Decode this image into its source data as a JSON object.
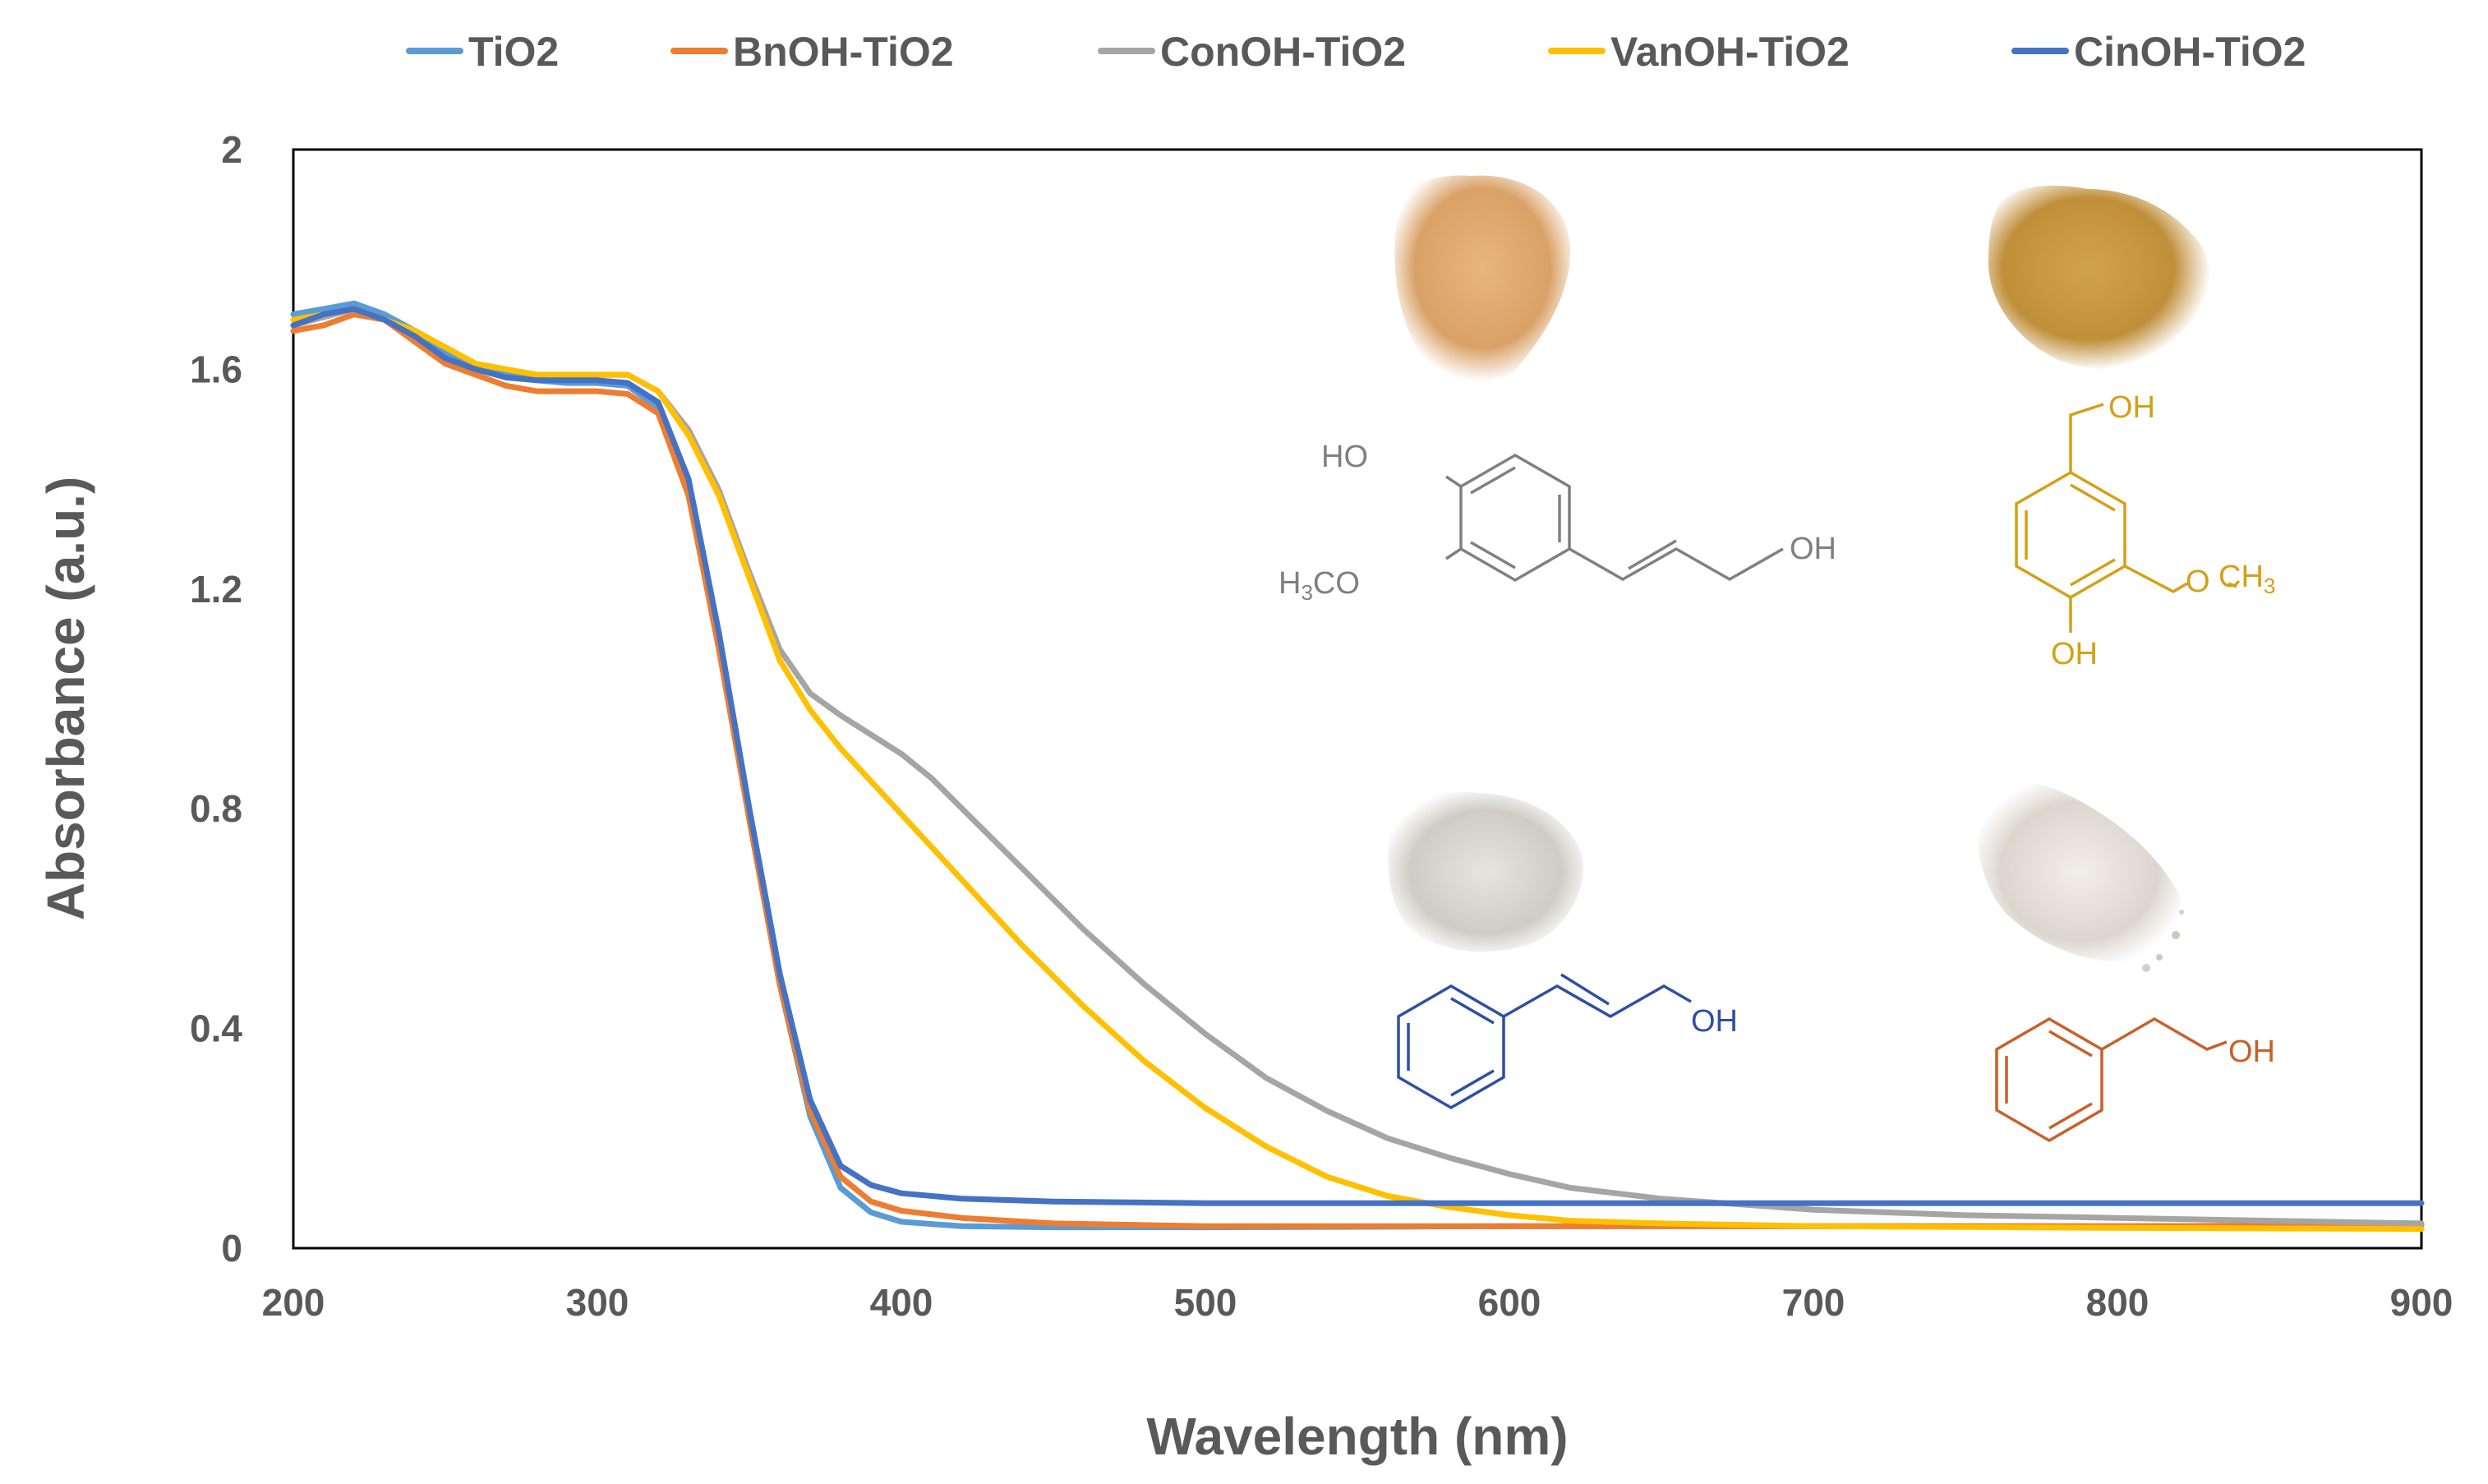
{
  "chart_data": {
    "type": "line",
    "title": "",
    "xlabel": "Wavelength (nm)",
    "ylabel": "Absorbance (a.u.)",
    "xlim": [
      200,
      900
    ],
    "ylim": [
      0,
      2
    ],
    "xticks": [
      200,
      300,
      400,
      500,
      600,
      700,
      800,
      900
    ],
    "yticks": [
      0,
      0.4,
      0.8,
      1.2,
      1.6,
      2
    ],
    "ytick_labels": [
      "0",
      "0.4",
      "0.8",
      "1.2",
      "1.6",
      "2"
    ],
    "grid": false,
    "legend_position": "top",
    "series": [
      {
        "name": "TiO2",
        "color": "#5b9bd5",
        "x": [
          200,
          210,
          220,
          230,
          240,
          250,
          260,
          270,
          280,
          290,
          300,
          310,
          320,
          330,
          340,
          350,
          360,
          370,
          380,
          390,
          400,
          420,
          450,
          500,
          600,
          700,
          800,
          900
        ],
        "y": [
          1.7,
          1.71,
          1.72,
          1.7,
          1.67,
          1.63,
          1.61,
          1.59,
          1.58,
          1.575,
          1.575,
          1.57,
          1.53,
          1.38,
          1.1,
          0.78,
          0.48,
          0.24,
          0.11,
          0.065,
          0.048,
          0.04,
          0.038,
          0.038,
          0.04,
          0.04,
          0.04,
          0.042
        ]
      },
      {
        "name": "BnOH-TiO2",
        "color": "#ed7d31",
        "x": [
          200,
          210,
          220,
          230,
          240,
          250,
          260,
          270,
          280,
          290,
          300,
          310,
          320,
          330,
          340,
          350,
          360,
          370,
          380,
          390,
          400,
          420,
          450,
          500,
          600,
          700,
          800,
          900
        ],
        "y": [
          1.67,
          1.68,
          1.7,
          1.69,
          1.65,
          1.61,
          1.59,
          1.57,
          1.56,
          1.56,
          1.56,
          1.555,
          1.52,
          1.37,
          1.09,
          0.78,
          0.48,
          0.25,
          0.13,
          0.085,
          0.068,
          0.055,
          0.045,
          0.04,
          0.04,
          0.04,
          0.04,
          0.042
        ]
      },
      {
        "name": "ConOH-TiO2",
        "color": "#a5a5a5",
        "x": [
          200,
          220,
          240,
          260,
          280,
          300,
          310,
          320,
          330,
          340,
          350,
          360,
          370,
          380,
          390,
          400,
          410,
          420,
          440,
          460,
          480,
          500,
          520,
          540,
          560,
          580,
          600,
          620,
          650,
          700,
          750,
          800,
          850,
          900
        ],
        "y": [
          1.68,
          1.71,
          1.67,
          1.61,
          1.59,
          1.59,
          1.59,
          1.56,
          1.49,
          1.38,
          1.23,
          1.09,
          1.01,
          0.97,
          0.935,
          0.9,
          0.855,
          0.8,
          0.69,
          0.58,
          0.48,
          0.39,
          0.31,
          0.25,
          0.2,
          0.165,
          0.135,
          0.11,
          0.09,
          0.07,
          0.06,
          0.055,
          0.05,
          0.045
        ]
      },
      {
        "name": "VanOH-TiO2",
        "color": "#ffc000",
        "x": [
          200,
          220,
          240,
          260,
          280,
          300,
          310,
          320,
          330,
          340,
          350,
          360,
          370,
          380,
          390,
          400,
          410,
          420,
          440,
          460,
          480,
          500,
          520,
          540,
          560,
          580,
          600,
          620,
          650,
          700,
          800,
          900
        ],
        "y": [
          1.69,
          1.71,
          1.67,
          1.61,
          1.59,
          1.59,
          1.59,
          1.56,
          1.48,
          1.37,
          1.22,
          1.07,
          0.98,
          0.91,
          0.85,
          0.79,
          0.73,
          0.67,
          0.55,
          0.44,
          0.34,
          0.255,
          0.185,
          0.13,
          0.095,
          0.075,
          0.06,
          0.05,
          0.045,
          0.04,
          0.037,
          0.035
        ]
      },
      {
        "name": "CinOH-TiO2",
        "color": "#4472c4",
        "x": [
          200,
          210,
          220,
          230,
          240,
          250,
          260,
          270,
          280,
          290,
          300,
          310,
          320,
          330,
          340,
          350,
          360,
          370,
          380,
          390,
          400,
          420,
          450,
          500,
          600,
          700,
          800,
          900
        ],
        "y": [
          1.68,
          1.7,
          1.71,
          1.69,
          1.66,
          1.62,
          1.6,
          1.585,
          1.58,
          1.58,
          1.58,
          1.575,
          1.54,
          1.4,
          1.12,
          0.8,
          0.5,
          0.27,
          0.15,
          0.115,
          0.1,
          0.09,
          0.085,
          0.082,
          0.082,
          0.082,
          0.082,
          0.082
        ]
      }
    ],
    "annotations": [
      {
        "name": "coniferyl-alcohol",
        "color": "#808080",
        "labels": [
          "HO",
          "H3CO",
          "OH"
        ]
      },
      {
        "name": "vanillyl-alcohol",
        "color": "#d4a017",
        "labels": [
          "OH",
          "O",
          "CH3",
          "OH"
        ]
      },
      {
        "name": "cinnamyl-alcohol",
        "color": "#2e4fa3",
        "labels": [
          "OH"
        ]
      },
      {
        "name": "benzyl-alcohol",
        "color": "#c8602a",
        "labels": [
          "OH"
        ]
      }
    ]
  }
}
